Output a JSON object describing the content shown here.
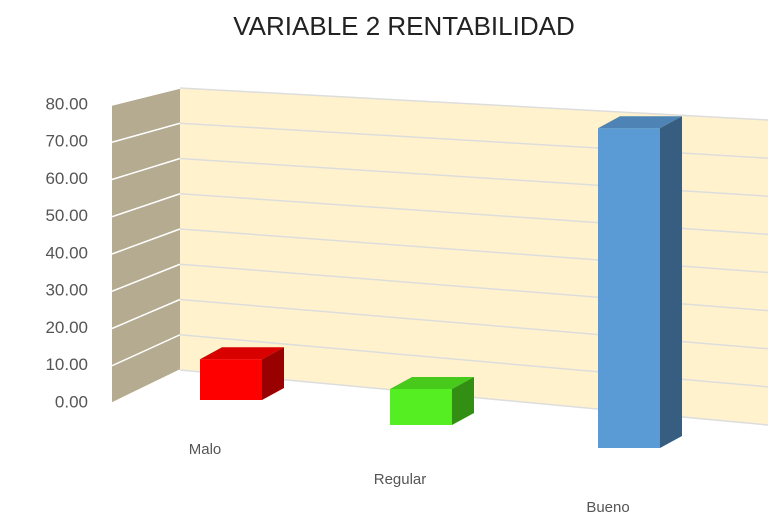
{
  "chart_data": {
    "type": "bar3d",
    "title": "VARIABLE 2 RENTABILIDAD",
    "categories": [
      "Malo",
      "Regular",
      "Bueno"
    ],
    "values": [
      12,
      10,
      78
    ],
    "colors": [
      "#ff0000",
      "#55ee22",
      "#5b9bd5"
    ],
    "ylim": [
      0,
      80
    ],
    "yticks": [
      {
        "value": 0,
        "label": "0.00"
      },
      {
        "value": 10,
        "label": "10.00"
      },
      {
        "value": 20,
        "label": "20.00"
      },
      {
        "value": 30,
        "label": "30.00"
      },
      {
        "value": 40,
        "label": "40.00"
      },
      {
        "value": 50,
        "label": "50.00"
      },
      {
        "value": 60,
        "label": "60.00"
      },
      {
        "value": 70,
        "label": "70.00"
      },
      {
        "value": 80,
        "label": "80.00"
      }
    ],
    "grid": true
  }
}
